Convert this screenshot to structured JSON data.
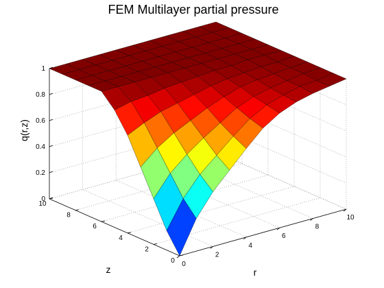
{
  "chart_data": {
    "type": "surface",
    "title": "FEM Multilayer partial pressure",
    "x_label": "r",
    "y_label": "z",
    "z_label": "q(r,z)",
    "x": [
      0,
      1,
      2,
      3,
      4,
      5,
      6,
      7,
      8,
      9,
      10
    ],
    "y": [
      0,
      1,
      2,
      3,
      4,
      5,
      6,
      7,
      8,
      9,
      10
    ],
    "values": [
      [
        0,
        0.25,
        0.42,
        0.55,
        0.68,
        0.8,
        0.88,
        0.93,
        0.96,
        0.98,
        1
      ],
      [
        0.15,
        0.36,
        0.51,
        0.62,
        0.73,
        0.83,
        0.9,
        0.94,
        0.97,
        0.98,
        1
      ],
      [
        0.35,
        0.51,
        0.62,
        0.71,
        0.79,
        0.87,
        0.92,
        0.95,
        0.97,
        0.99,
        1
      ],
      [
        0.55,
        0.66,
        0.74,
        0.8,
        0.86,
        0.91,
        0.95,
        0.97,
        0.98,
        0.99,
        1
      ],
      [
        0.75,
        0.81,
        0.86,
        0.89,
        0.92,
        0.95,
        0.97,
        0.98,
        0.99,
        0.99,
        1
      ],
      [
        0.9,
        0.93,
        0.94,
        0.96,
        0.97,
        0.98,
        0.99,
        0.99,
        1,
        1,
        1
      ],
      [
        1,
        1,
        1,
        1,
        1,
        1,
        1,
        1,
        1,
        1,
        1
      ],
      [
        1,
        1,
        1,
        1,
        1,
        1,
        1,
        1,
        1,
        1,
        1
      ],
      [
        1,
        1,
        1,
        1,
        1,
        1,
        1,
        1,
        1,
        1,
        1
      ],
      [
        1,
        1,
        1,
        1,
        1,
        1,
        1,
        1,
        1,
        1,
        1
      ],
      [
        1,
        1,
        1,
        1,
        1,
        1,
        1,
        1,
        1,
        1,
        1
      ]
    ],
    "colormap": "jet",
    "xlim": [
      0,
      10
    ],
    "xticks": [
      0,
      2,
      4,
      6,
      8,
      10
    ],
    "ylim": [
      0,
      10
    ],
    "yticks": [
      0,
      2,
      4,
      6,
      8,
      10
    ],
    "zlim": [
      0,
      1
    ],
    "zticks": [
      0,
      0.2,
      0.4,
      0.6,
      0.8,
      1
    ],
    "grid": true
  }
}
